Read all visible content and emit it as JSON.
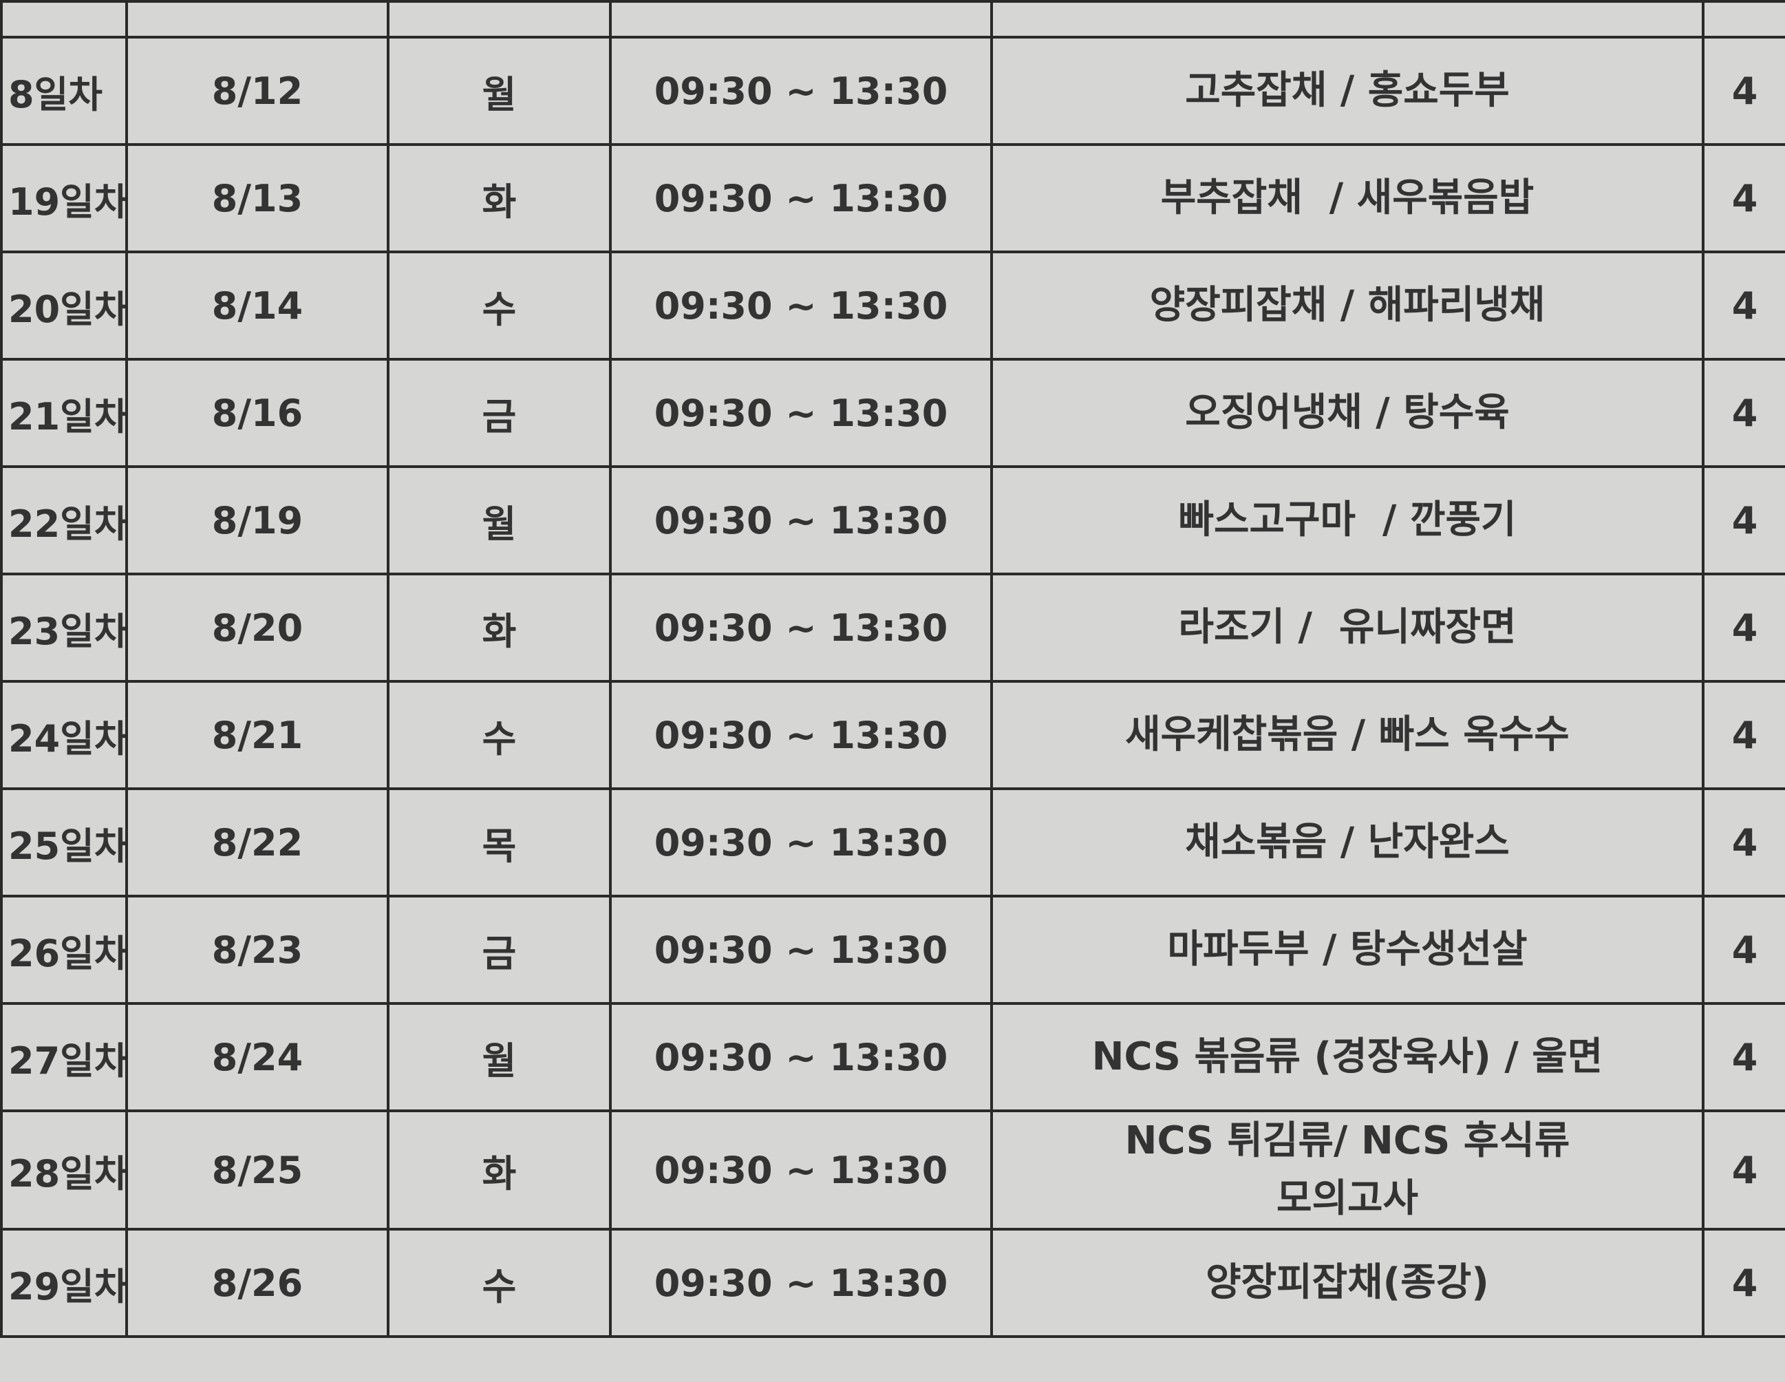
{
  "table": {
    "rows": [
      [
        "8일차",
        "8/12",
        "월",
        "09:30 ~ 13:30",
        "고추잡채 / 홍쇼두부",
        "4"
      ],
      [
        "19일차",
        "8/13",
        "화",
        "09:30 ~ 13:30",
        "부추잡채  / 새우볶음밥",
        "4"
      ],
      [
        "20일차",
        "8/14",
        "수",
        "09:30 ~ 13:30",
        "양장피잡채 / 해파리냉채",
        "4"
      ],
      [
        "21일차",
        "8/16",
        "금",
        "09:30 ~ 13:30",
        "오징어냉채 / 탕수육",
        "4"
      ],
      [
        "22일차",
        "8/19",
        "월",
        "09:30 ~ 13:30",
        "빠스고구마  / 깐풍기",
        "4"
      ],
      [
        "23일차",
        "8/20",
        "화",
        "09:30 ~ 13:30",
        "라조기 /  유니짜장면",
        "4"
      ],
      [
        "24일차",
        "8/21",
        "수",
        "09:30 ~ 13:30",
        "새우케찹볶음 / 빠스 옥수수",
        "4"
      ],
      [
        "25일차",
        "8/22",
        "목",
        "09:30 ~ 13:30",
        "채소볶음 / 난자완스",
        "4"
      ],
      [
        "26일차",
        "8/23",
        "금",
        "09:30 ~ 13:30",
        "마파두부 / 탕수생선살",
        "4"
      ],
      [
        "27일차",
        "8/24",
        "월",
        "09:30 ~ 13:30",
        "NCS 볶음류 (경장육사) / 울면",
        "4"
      ],
      [
        "28일차",
        "8/25",
        "화",
        "09:30 ~ 13:30",
        [
          "NCS 튀김류/ NCS 후식류",
          "모의고사"
        ],
        "4"
      ],
      [
        "29일차",
        "8/26",
        "수",
        "09:30 ~ 13:30",
        "양장피잡채(종강)",
        "4"
      ]
    ]
  }
}
